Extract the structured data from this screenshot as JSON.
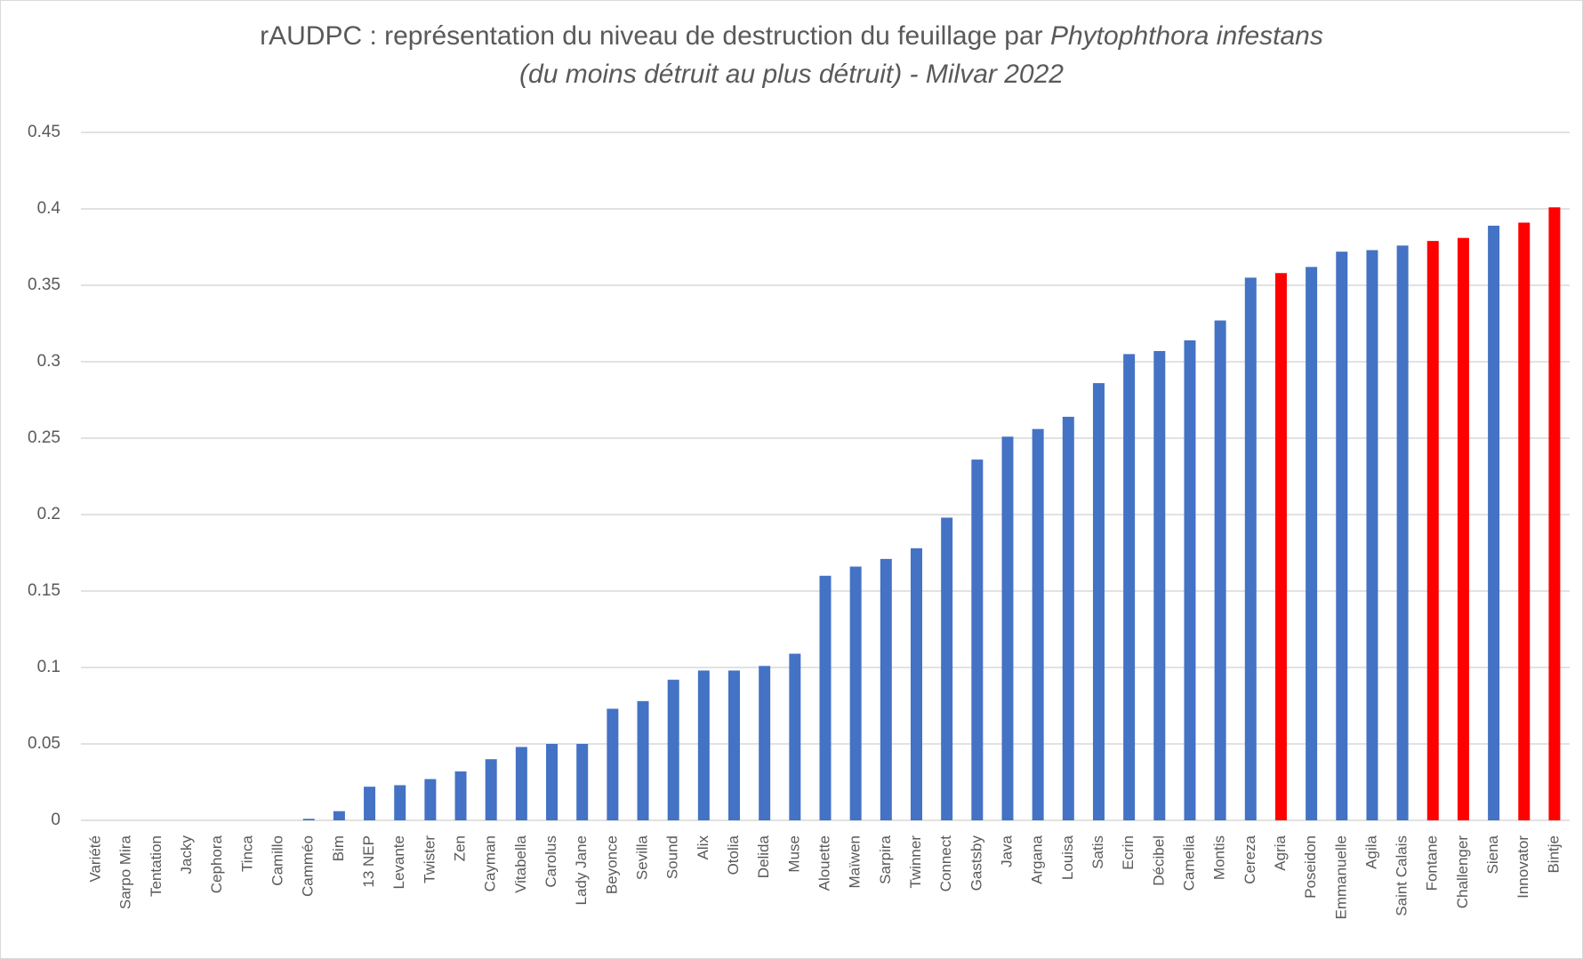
{
  "chart_data": {
    "type": "bar",
    "title": [
      "rAUDPC : représentation du niveau de destruction du feuillage par ",
      "Phytophthora infestans",
      "(du moins détruit au plus détruit) - Milvar 2022"
    ],
    "categories": [
      "Variété",
      "Sarpo Mira",
      "Tentation",
      "Jacky",
      "Cephora",
      "Tinca",
      "Camillo",
      "Camméo",
      "Bim",
      "13 NEP",
      "Levante",
      "Twister",
      "Zen",
      "Cayman",
      "Vitabella",
      "Carolus",
      "Lady Jane",
      "Beyonce",
      "Sevilla",
      "Sound",
      "Alix",
      "Otolia",
      "Delida",
      "Muse",
      "Alouette",
      "Maïwen",
      "Sarpira",
      "Twinner",
      "Connect",
      "Gastsby",
      "Java",
      "Argana",
      "Louisa",
      "Satis",
      "Ecrin",
      "Décibel",
      "Camelia",
      "Montis",
      "Cereza",
      "Agria",
      "Poseidon",
      "Emmanuelle",
      "Agila",
      "Saint Calais",
      "Fontane",
      "Challenger",
      "Siena",
      "Innovator",
      "Bintje"
    ],
    "values": [
      null,
      0,
      0,
      0,
      0,
      0,
      0,
      0.001,
      0.006,
      0.022,
      0.023,
      0.027,
      0.032,
      0.04,
      0.048,
      0.05,
      0.05,
      0.073,
      0.078,
      0.092,
      0.098,
      0.098,
      0.101,
      0.109,
      0.16,
      0.166,
      0.171,
      0.178,
      0.198,
      0.236,
      0.251,
      0.256,
      0.264,
      0.286,
      0.305,
      0.307,
      0.314,
      0.327,
      0.355,
      0.358,
      0.362,
      0.372,
      0.373,
      0.376,
      0.379,
      0.381,
      0.389,
      0.391,
      0.401
    ],
    "colors": [
      "#4472c4",
      "#4472c4",
      "#4472c4",
      "#4472c4",
      "#4472c4",
      "#4472c4",
      "#4472c4",
      "#4472c4",
      "#4472c4",
      "#4472c4",
      "#4472c4",
      "#4472c4",
      "#4472c4",
      "#4472c4",
      "#4472c4",
      "#4472c4",
      "#4472c4",
      "#4472c4",
      "#4472c4",
      "#4472c4",
      "#4472c4",
      "#4472c4",
      "#4472c4",
      "#4472c4",
      "#4472c4",
      "#4472c4",
      "#4472c4",
      "#4472c4",
      "#4472c4",
      "#4472c4",
      "#4472c4",
      "#4472c4",
      "#4472c4",
      "#4472c4",
      "#4472c4",
      "#4472c4",
      "#4472c4",
      "#4472c4",
      "#4472c4",
      "#ff0000",
      "#4472c4",
      "#4472c4",
      "#4472c4",
      "#4472c4",
      "#ff0000",
      "#ff0000",
      "#4472c4",
      "#ff0000",
      "#ff0000"
    ],
    "ylim": [
      0,
      0.45
    ],
    "yticks": [
      0,
      0.05,
      0.1,
      0.15,
      0.2,
      0.25,
      0.3,
      0.35,
      0.4,
      0.45
    ],
    "grid": true
  }
}
